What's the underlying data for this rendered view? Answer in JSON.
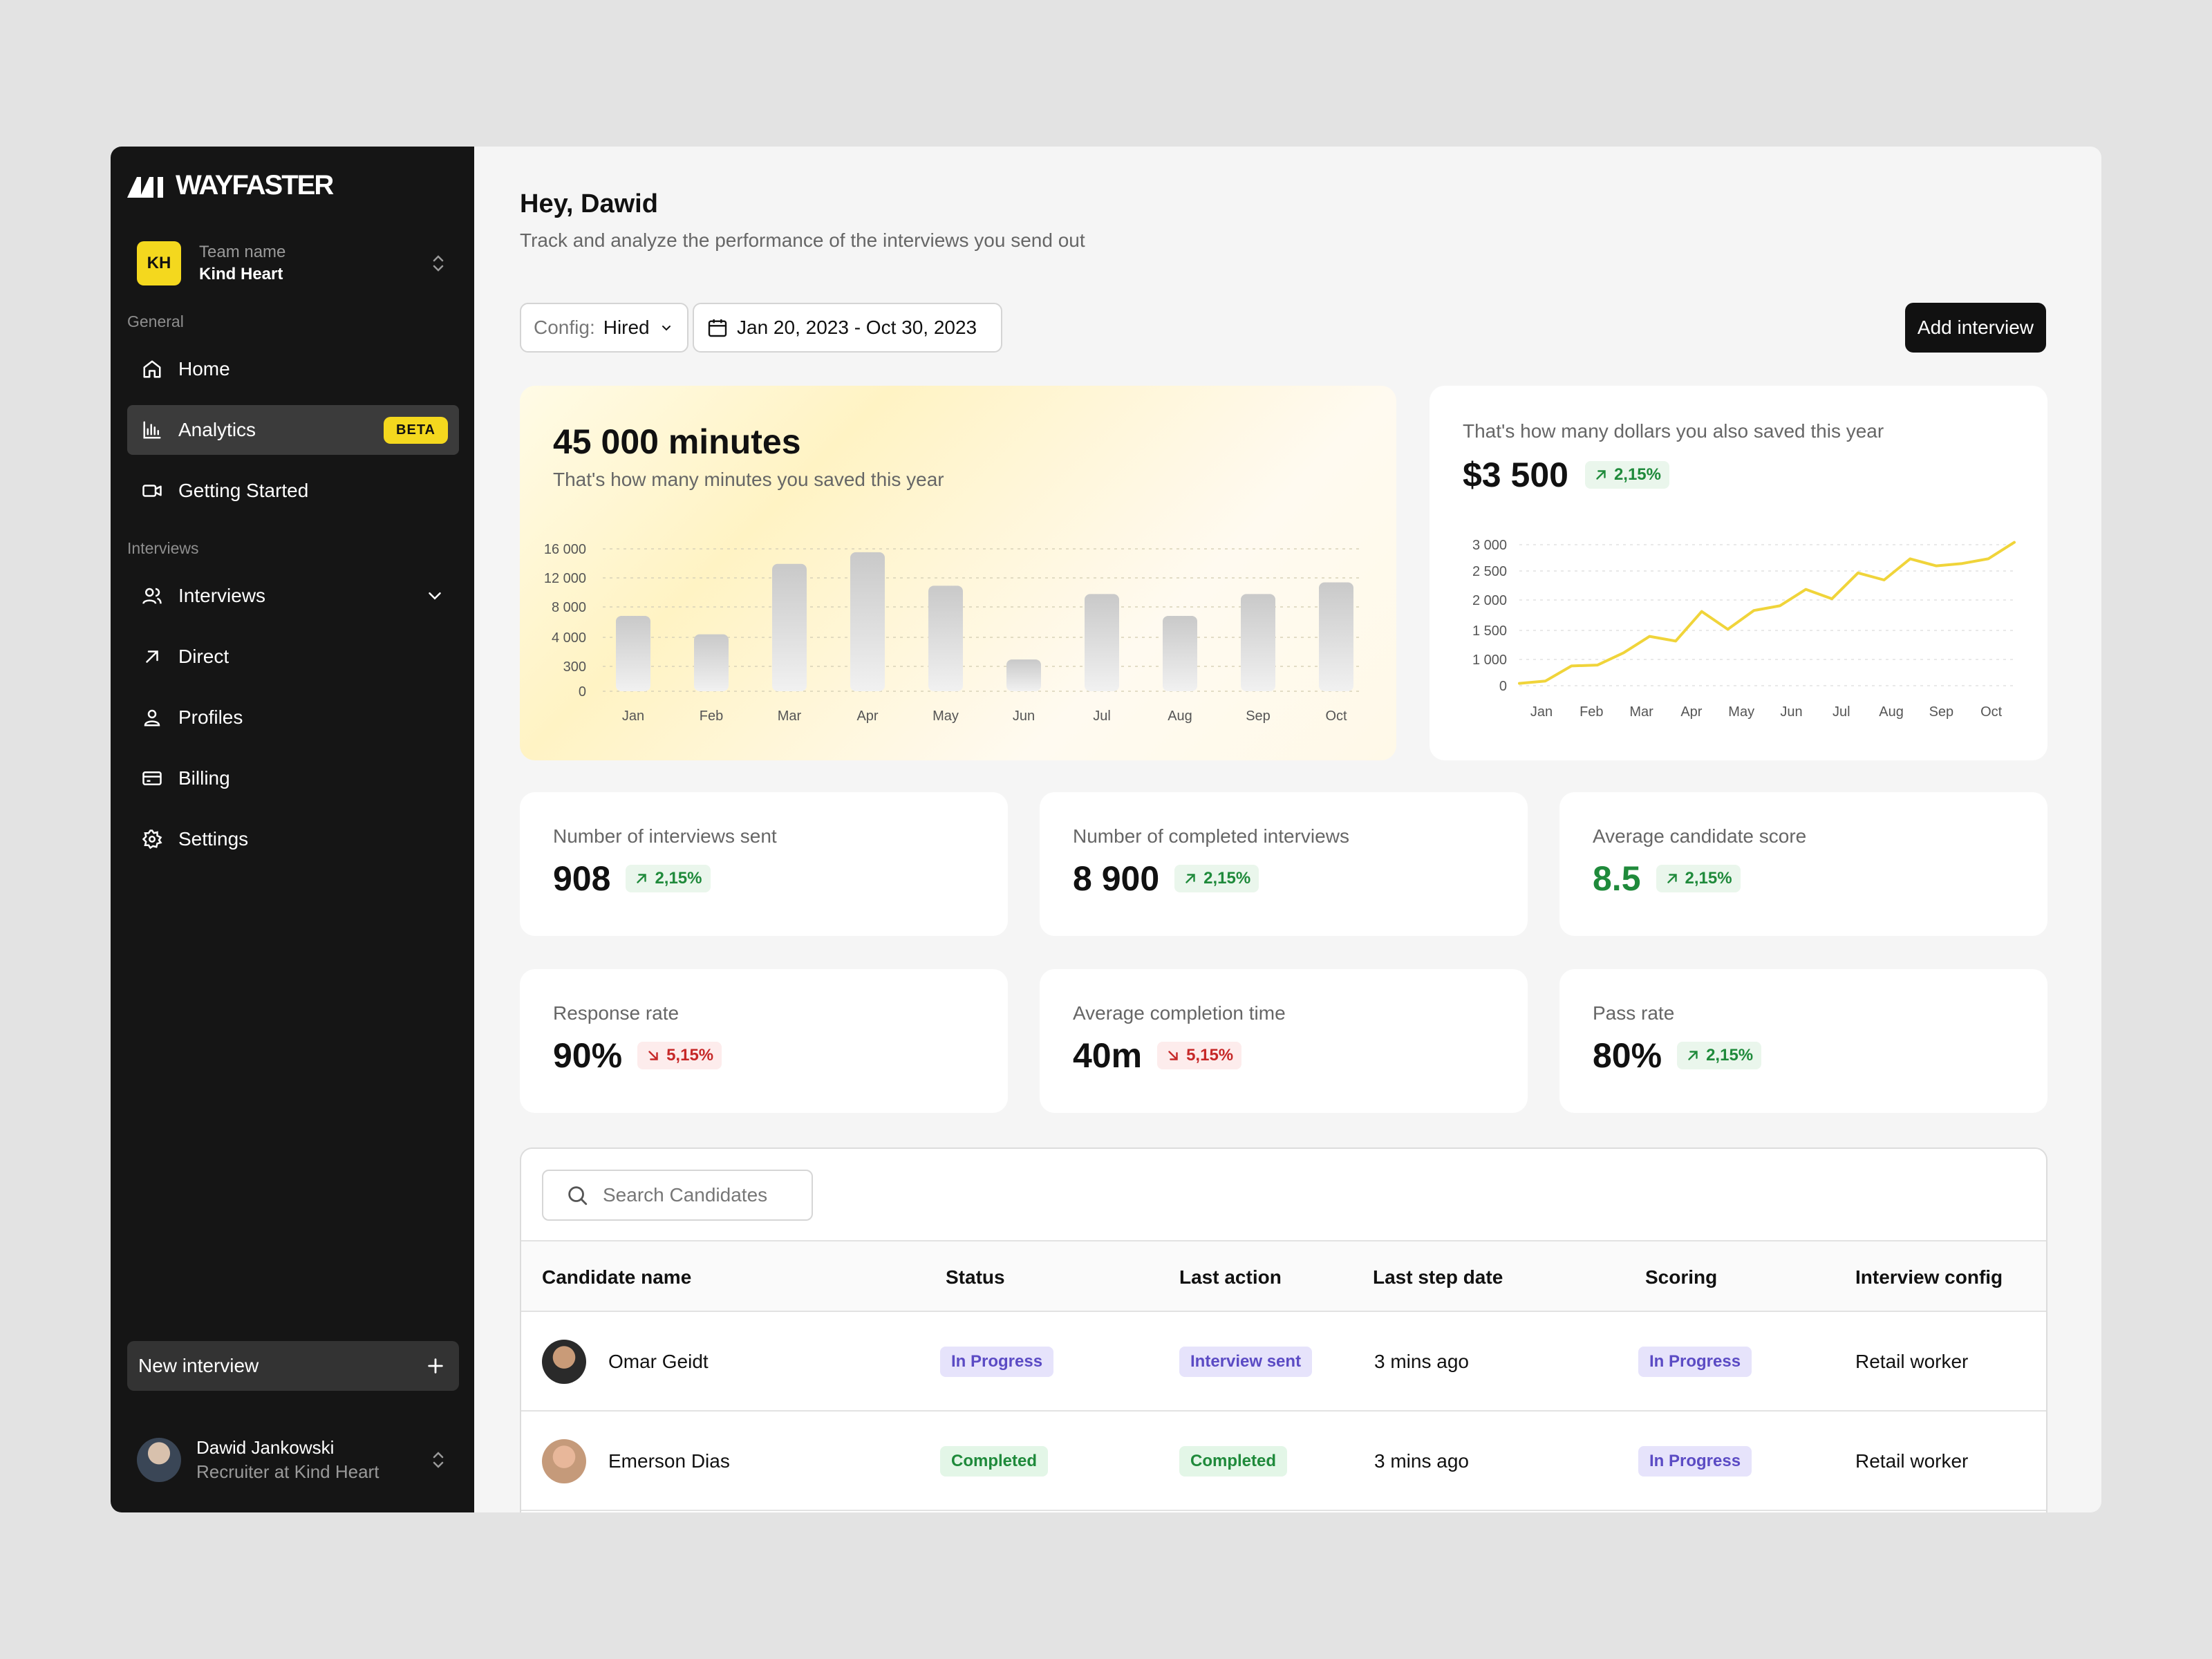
{
  "brand": {
    "name": "WAYFASTER"
  },
  "team": {
    "label": "Team name",
    "name": "Kind Heart",
    "initials": "KH"
  },
  "sidebar": {
    "general_label": "General",
    "interviews_label": "Interviews",
    "items": [
      {
        "label": "Home",
        "icon": "home-icon"
      },
      {
        "label": "Analytics",
        "icon": "bar-chart-icon",
        "badge": "BETA",
        "active": true
      },
      {
        "label": "Getting Started",
        "icon": "video-icon"
      },
      {
        "label": "Interviews",
        "icon": "users-icon"
      },
      {
        "label": "Direct",
        "icon": "arrow-up-right-icon"
      },
      {
        "label": "Profiles",
        "icon": "user-icon"
      },
      {
        "label": "Billing",
        "icon": "credit-card-icon"
      },
      {
        "label": "Settings",
        "icon": "gear-icon"
      }
    ],
    "new_interview": "New interview"
  },
  "user": {
    "name": "Dawid Jankowski",
    "role": "Recruiter at Kind Heart"
  },
  "header": {
    "greeting": "Hey, Dawid",
    "subtitle": "Track and analyze the performance of the interviews you send out",
    "config_label": "Config:",
    "config_value": "Hired",
    "date_range": "Jan 20, 2023 - Oct 30, 2023",
    "add_button": "Add interview"
  },
  "minutes_card": {
    "value": "45 000 minutes",
    "subtitle": "That's how many minutes you saved this year"
  },
  "dollars_card": {
    "subtitle": "That's how many dollars you also saved this year",
    "value": "$3 500",
    "change": "2,15%"
  },
  "chart_data": [
    {
      "type": "bar",
      "categories": [
        "Jan",
        "Feb",
        "Mar",
        "Apr",
        "May",
        "Jun",
        "Jul",
        "Aug",
        "Sep",
        "Oct"
      ],
      "values": [
        9000,
        6800,
        15200,
        16600,
        12600,
        3800,
        11600,
        9000,
        11600,
        13000
      ],
      "y_ticks": [
        "16 000",
        "12 000",
        "8 000",
        "4 000",
        "300",
        "0"
      ],
      "grid": true
    },
    {
      "type": "line",
      "categories": [
        "Jan",
        "Feb",
        "Mar",
        "Apr",
        "May",
        "Jun",
        "Jul",
        "Aug",
        "Sep",
        "Oct"
      ],
      "x": [
        "Jan",
        "",
        "Feb",
        "",
        "Mar",
        "",
        "Apr",
        "",
        "May",
        "",
        "Jun",
        "",
        "Jul",
        "",
        "Aug",
        "",
        "Sep",
        "",
        "Oct",
        ""
      ],
      "values": [
        50,
        100,
        420,
        440,
        700,
        1050,
        950,
        1580,
        1200,
        1600,
        1700,
        2050,
        1850,
        2400,
        2250,
        2700,
        2550,
        2600,
        2700,
        3050
      ],
      "y_ticks": [
        "3 000",
        "2 500",
        "2 000",
        "1 500",
        "1 000",
        "0"
      ],
      "color": "#f0d43a",
      "grid": true
    }
  ],
  "stats": [
    {
      "label": "Number of interviews sent",
      "value": "908",
      "change": "2,15%",
      "direction": "up"
    },
    {
      "label": "Number of completed interviews",
      "value": "8 900",
      "change": "2,15%",
      "direction": "up"
    },
    {
      "label": "Average candidate score",
      "value": "8.5",
      "change": "2,15%",
      "direction": "up",
      "highlight": true
    },
    {
      "label": "Response rate",
      "value": "90%",
      "change": "5,15%",
      "direction": "down"
    },
    {
      "label": "Average completion time",
      "value": "40m",
      "change": "5,15%",
      "direction": "down"
    },
    {
      "label": "Pass rate",
      "value": "80%",
      "change": "2,15%",
      "direction": "up"
    }
  ],
  "table": {
    "search_placeholder": "Search Candidates",
    "columns": [
      "Candidate name",
      "Status",
      "Last action",
      "Last step date",
      "Scoring",
      "Interview config"
    ],
    "rows": [
      {
        "name": "Omar Geidt",
        "status": "In Progress",
        "last_action": "Interview sent",
        "date": "3 mins ago",
        "scoring": "In Progress",
        "config": "Retail worker"
      },
      {
        "name": "Emerson Dias",
        "status": "Completed",
        "last_action": "Completed",
        "date": "3 mins ago",
        "scoring": "In Progress",
        "config": "Retail worker"
      }
    ]
  },
  "colors": {
    "accent": "#f4d81e",
    "sidebar": "#151515",
    "up": "#1f8a3b",
    "down": "#c62828",
    "pill_purple": "#5b4bc4"
  }
}
